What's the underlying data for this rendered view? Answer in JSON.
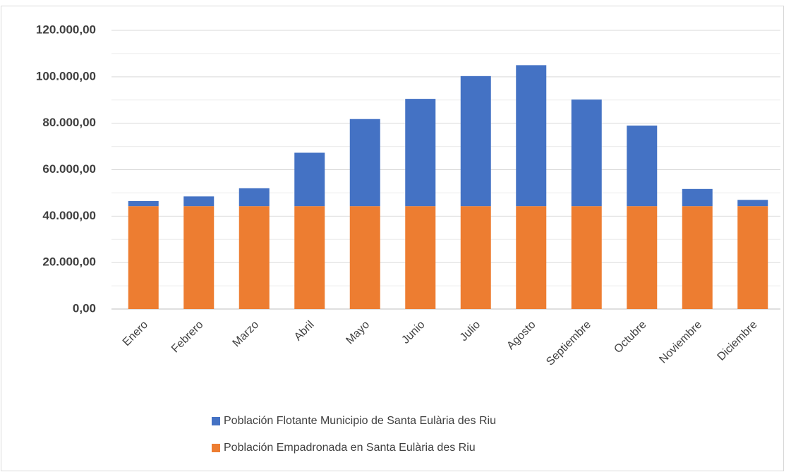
{
  "chart_data": {
    "type": "stacked_bar",
    "categories": [
      "Enero",
      "Febrero",
      "Marzo",
      "Abril",
      "Mayo",
      "Junio",
      "Julio",
      "Agosto",
      "Septiembre",
      "Octubre",
      "Noviembre",
      "Diciembre"
    ],
    "series": [
      {
        "name": "Población Empadronada en Santa Eulària des Riu",
        "color": "#ed7d31",
        "values": [
          44300,
          44300,
          44300,
          44300,
          44300,
          44300,
          44300,
          44300,
          44300,
          44300,
          44300,
          44300
        ]
      },
      {
        "name": "Población Flotante Municipio de Santa Eulària des Riu",
        "color": "#4472c4",
        "values": [
          2200,
          4200,
          7700,
          23000,
          37500,
          46200,
          56000,
          60700,
          45900,
          34700,
          7400,
          2700
        ]
      }
    ],
    "ylim": [
      0,
      120000
    ],
    "yticks": [
      {
        "value": 0,
        "label": "0,00"
      },
      {
        "value": 20000,
        "label": "20.000,00"
      },
      {
        "value": 40000,
        "label": "40.000,00"
      },
      {
        "value": 60000,
        "label": "60.000,00"
      },
      {
        "value": 80000,
        "label": "80.000,00"
      },
      {
        "value": 100000,
        "label": "100.000,00"
      },
      {
        "value": 120000,
        "label": "120.000,00"
      }
    ],
    "minor_yticks": [
      10000,
      30000,
      50000,
      70000,
      90000,
      110000
    ],
    "grid": true,
    "legend": "bottom"
  }
}
